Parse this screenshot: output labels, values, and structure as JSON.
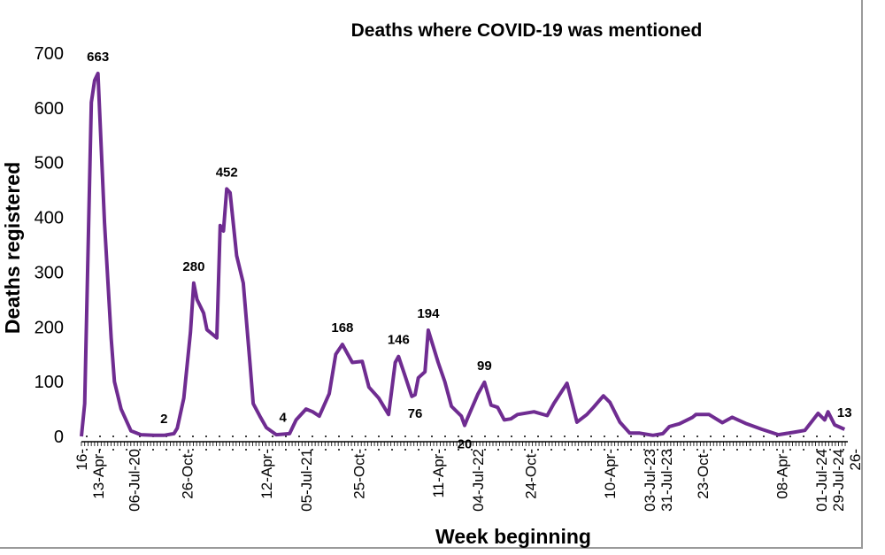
{
  "chart_data": {
    "type": "line",
    "title": "Deaths where COVID-19 was mentioned",
    "xlabel": "Week beginning",
    "ylabel": "Deaths registered",
    "ylim": [
      0,
      700
    ],
    "yticks": [
      0,
      100,
      200,
      300,
      400,
      500,
      600,
      700
    ],
    "xlim": [
      "2020-03-16",
      "2024-08-26"
    ],
    "grid": false,
    "line_color": "#6f2c91",
    "xticks": [
      {
        "date": "2020-03-16",
        "label": "16-"
      },
      {
        "date": "2020-04-13",
        "label": "13-Apr-"
      },
      {
        "date": "2020-07-06",
        "label": "06-Jul-20"
      },
      {
        "date": "2020-10-26",
        "label": "26-Oct-"
      },
      {
        "date": "2021-04-12",
        "label": "12-Apr-"
      },
      {
        "date": "2021-07-05",
        "label": "05-Jul-21"
      },
      {
        "date": "2021-10-25",
        "label": "25-Oct-"
      },
      {
        "date": "2022-04-11",
        "label": "11-Apr-"
      },
      {
        "date": "2022-07-04",
        "label": "04-Jul-22"
      },
      {
        "date": "2022-10-24",
        "label": "24-Oct-"
      },
      {
        "date": "2023-04-10",
        "label": "10-Apr-"
      },
      {
        "date": "2023-07-03",
        "label": "03-Jul-23"
      },
      {
        "date": "2023-07-31",
        "label": "31-Jul-23"
      },
      {
        "date": "2023-10-23",
        "label": "23-Oct-"
      },
      {
        "date": "2024-04-08",
        "label": "08-Apr-"
      },
      {
        "date": "2024-07-01",
        "label": "01-Jul-24"
      },
      {
        "date": "2024-07-29",
        "label": "29-Jul-24"
      },
      {
        "date": "2024-08-26",
        "label": "26-"
      }
    ],
    "series": [
      {
        "points": [
          [
            "2020-03-16",
            0
          ],
          [
            "2020-03-23",
            60
          ],
          [
            "2020-04-06",
            610
          ],
          [
            "2020-04-13",
            650
          ],
          [
            "2020-04-20",
            663
          ],
          [
            "2020-05-04",
            390
          ],
          [
            "2020-05-18",
            180
          ],
          [
            "2020-05-25",
            100
          ],
          [
            "2020-06-08",
            50
          ],
          [
            "2020-06-29",
            10
          ],
          [
            "2020-07-20",
            3
          ],
          [
            "2020-08-17",
            2
          ],
          [
            "2020-09-07",
            2
          ],
          [
            "2020-09-28",
            5
          ],
          [
            "2020-10-05",
            15
          ],
          [
            "2020-10-19",
            70
          ],
          [
            "2020-11-02",
            190
          ],
          [
            "2020-11-09",
            280
          ],
          [
            "2020-11-16",
            250
          ],
          [
            "2020-11-30",
            225
          ],
          [
            "2020-12-07",
            195
          ],
          [
            "2020-12-28",
            180
          ],
          [
            "2021-01-04",
            385
          ],
          [
            "2021-01-11",
            375
          ],
          [
            "2021-01-18",
            452
          ],
          [
            "2021-01-25",
            445
          ],
          [
            "2021-02-08",
            330
          ],
          [
            "2021-02-22",
            280
          ],
          [
            "2021-03-08",
            135
          ],
          [
            "2021-03-15",
            60
          ],
          [
            "2021-03-29",
            37
          ],
          [
            "2021-04-12",
            16
          ],
          [
            "2021-05-03",
            3
          ],
          [
            "2021-05-17",
            4
          ],
          [
            "2021-05-31",
            5
          ],
          [
            "2021-06-14",
            30
          ],
          [
            "2021-07-05",
            50
          ],
          [
            "2021-07-19",
            45
          ],
          [
            "2021-08-02",
            37
          ],
          [
            "2021-08-23",
            78
          ],
          [
            "2021-09-06",
            150
          ],
          [
            "2021-09-20",
            168
          ],
          [
            "2021-10-11",
            135
          ],
          [
            "2021-11-01",
            137
          ],
          [
            "2021-11-15",
            90
          ],
          [
            "2021-12-06",
            70
          ],
          [
            "2021-12-27",
            40
          ],
          [
            "2022-01-10",
            135
          ],
          [
            "2022-01-17",
            146
          ],
          [
            "2022-01-31",
            110
          ],
          [
            "2022-02-14",
            73
          ],
          [
            "2022-02-21",
            76
          ],
          [
            "2022-02-28",
            107
          ],
          [
            "2022-03-14",
            118
          ],
          [
            "2022-03-21",
            194
          ],
          [
            "2022-04-11",
            135
          ],
          [
            "2022-04-25",
            100
          ],
          [
            "2022-05-09",
            55
          ],
          [
            "2022-05-30",
            37
          ],
          [
            "2022-06-06",
            20
          ],
          [
            "2022-06-13",
            35
          ],
          [
            "2022-07-04",
            77
          ],
          [
            "2022-07-18",
            99
          ],
          [
            "2022-08-01",
            57
          ],
          [
            "2022-08-15",
            53
          ],
          [
            "2022-08-29",
            30
          ],
          [
            "2022-09-12",
            32
          ],
          [
            "2022-09-26",
            40
          ],
          [
            "2022-10-31",
            45
          ],
          [
            "2022-11-28",
            38
          ],
          [
            "2022-12-12",
            60
          ],
          [
            "2023-01-09",
            97
          ],
          [
            "2023-01-30",
            26
          ],
          [
            "2023-02-20",
            40
          ],
          [
            "2023-03-06",
            53
          ],
          [
            "2023-03-27",
            74
          ],
          [
            "2023-04-10",
            62
          ],
          [
            "2023-05-01",
            26
          ],
          [
            "2023-05-22",
            6
          ],
          [
            "2023-06-12",
            6
          ],
          [
            "2023-07-10",
            2
          ],
          [
            "2023-07-31",
            5
          ],
          [
            "2023-08-14",
            18
          ],
          [
            "2023-09-04",
            23
          ],
          [
            "2023-10-02",
            35
          ],
          [
            "2023-10-09",
            40
          ],
          [
            "2023-11-06",
            40
          ],
          [
            "2023-12-04",
            25
          ],
          [
            "2023-12-25",
            35
          ],
          [
            "2024-01-22",
            24
          ],
          [
            "2024-02-26",
            13
          ],
          [
            "2024-04-01",
            3
          ],
          [
            "2024-05-06",
            8
          ],
          [
            "2024-05-27",
            11
          ],
          [
            "2024-06-24",
            42
          ],
          [
            "2024-07-08",
            30
          ],
          [
            "2024-07-15",
            45
          ],
          [
            "2024-07-29",
            21
          ],
          [
            "2024-08-19",
            13
          ]
        ]
      }
    ],
    "annotations": [
      {
        "date": "2020-04-20",
        "value": 663,
        "text": "663",
        "pos": "above"
      },
      {
        "date": "2020-09-07",
        "value": 2,
        "text": "2",
        "pos": "above"
      },
      {
        "date": "2020-11-09",
        "value": 280,
        "text": "280",
        "pos": "above"
      },
      {
        "date": "2021-01-18",
        "value": 452,
        "text": "452",
        "pos": "above"
      },
      {
        "date": "2021-05-17",
        "value": 4,
        "text": "4",
        "pos": "above"
      },
      {
        "date": "2021-09-20",
        "value": 168,
        "text": "168",
        "pos": "above"
      },
      {
        "date": "2022-01-17",
        "value": 146,
        "text": "146",
        "pos": "above"
      },
      {
        "date": "2022-02-21",
        "value": 76,
        "text": "76",
        "pos": "below"
      },
      {
        "date": "2022-03-21",
        "value": 194,
        "text": "194",
        "pos": "above"
      },
      {
        "date": "2022-06-06",
        "value": 20,
        "text": "20",
        "pos": "below"
      },
      {
        "date": "2022-07-18",
        "value": 99,
        "text": "99",
        "pos": "above"
      },
      {
        "date": "2024-08-19",
        "value": 13,
        "text": "13",
        "pos": "above"
      }
    ]
  }
}
